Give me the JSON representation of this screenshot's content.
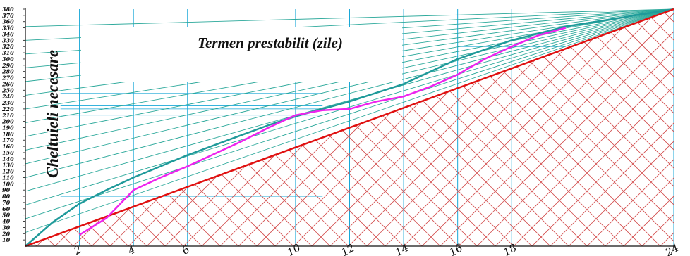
{
  "chart_data": {
    "type": "line",
    "title": "Termen prestabilit (zile)",
    "ylabel": "Cheltuieli   necesare",
    "xlabel": "",
    "xlim": [
      0,
      24
    ],
    "ylim": [
      0,
      380
    ],
    "x_ticks": [
      2,
      4,
      6,
      10,
      12,
      14,
      16,
      18,
      24
    ],
    "y_ticks": [
      10,
      20,
      30,
      40,
      50,
      60,
      70,
      80,
      90,
      100,
      110,
      120,
      130,
      140,
      150,
      160,
      170,
      180,
      190,
      200,
      210,
      220,
      230,
      240,
      250,
      260,
      270,
      280,
      290,
      300,
      310,
      320,
      330,
      340,
      350,
      360,
      370,
      380
    ],
    "grid": true,
    "colors": {
      "upper_envelope": "#1f9a9a",
      "lower_envelope": "#e01010",
      "actual_curve": "#ee22ee",
      "hatching": "#d24b4b",
      "fan_lines": "#2aa89a",
      "grid": "#1aa8d8"
    },
    "series": [
      {
        "role": "upper-envelope",
        "x": [
          0,
          1,
          2,
          3,
          4,
          5,
          6,
          7,
          8,
          9,
          10,
          11,
          12,
          14,
          16,
          18,
          20,
          24
        ],
        "y": [
          0,
          38,
          68,
          90,
          110,
          128,
          146,
          162,
          178,
          194,
          208,
          220,
          232,
          260,
          300,
          330,
          352,
          380
        ]
      },
      {
        "role": "lower-envelope",
        "x": [
          0,
          24
        ],
        "y": [
          0,
          380
        ]
      },
      {
        "role": "actual-curve",
        "x": [
          2,
          3,
          4,
          5,
          6,
          7,
          8,
          9,
          10,
          11,
          12,
          13,
          14,
          15,
          16,
          17,
          18,
          19,
          20
        ],
        "y": [
          18,
          45,
          90,
          110,
          128,
          148,
          168,
          190,
          210,
          218,
          220,
          232,
          240,
          256,
          275,
          300,
          320,
          338,
          350
        ]
      }
    ]
  }
}
